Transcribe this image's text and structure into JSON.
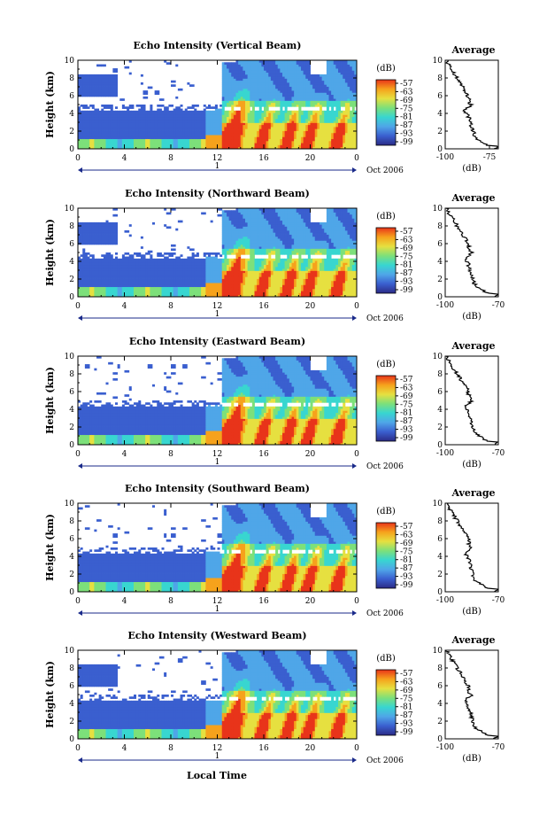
{
  "figure": {
    "xlabel": "Local Time",
    "date_label": "Oct 2006",
    "day_label": "1",
    "colorbar_unit": "(dB)",
    "average_title": "Average",
    "average_xlabel": "(dB)"
  },
  "colors": {
    "colormap": [
      "#2b2b86",
      "#3a5fcf",
      "#4fa6e8",
      "#38d6d0",
      "#7de07a",
      "#e6e040",
      "#f6a21c",
      "#e8341a"
    ],
    "trace": "#000000"
  },
  "chart_data": [
    {
      "type": "heatmap",
      "title": "Echo Intensity (Vertical Beam)",
      "ylabel": "Height (km)",
      "xlim": [
        0,
        24
      ],
      "ylim": [
        0,
        10
      ],
      "x_ticks": [
        "0",
        "4",
        "8",
        "12",
        "16",
        "20",
        "0"
      ],
      "y_ticks": [
        "0",
        "2",
        "4",
        "6",
        "8",
        "10"
      ],
      "colorbar_ticks": [
        "-57",
        "-63",
        "-69",
        "-75",
        "-81",
        "-87",
        "-93",
        "-99"
      ],
      "average": {
        "title": "Average",
        "xlabel": "(dB)",
        "x_ticks": [
          "-100",
          "-75"
        ],
        "xlim": [
          -100,
          -70
        ],
        "y_ticks": [
          "0",
          "2",
          "4",
          "6",
          "8",
          "10"
        ]
      }
    },
    {
      "type": "heatmap",
      "title": "Echo Intensity (Northward Beam)",
      "ylabel": "Height (km)",
      "xlim": [
        0,
        24
      ],
      "ylim": [
        0,
        10
      ],
      "x_ticks": [
        "0",
        "4",
        "8",
        "12",
        "16",
        "20",
        "0"
      ],
      "y_ticks": [
        "0",
        "2",
        "4",
        "6",
        "8",
        "10"
      ],
      "colorbar_ticks": [
        "-57",
        "-63",
        "-69",
        "-75",
        "-81",
        "-87",
        "-93",
        "-99"
      ],
      "average": {
        "title": "Average",
        "xlabel": "(dB)",
        "x_ticks": [
          "-100",
          "-70"
        ],
        "xlim": [
          -100,
          -70
        ],
        "y_ticks": [
          "0",
          "2",
          "4",
          "6",
          "8",
          "10"
        ]
      }
    },
    {
      "type": "heatmap",
      "title": "Echo Intensity (Eastward Beam)",
      "ylabel": "Height (km)",
      "xlim": [
        0,
        24
      ],
      "ylim": [
        0,
        10
      ],
      "x_ticks": [
        "0",
        "4",
        "8",
        "12",
        "16",
        "20",
        "0"
      ],
      "y_ticks": [
        "0",
        "2",
        "4",
        "6",
        "8",
        "10"
      ],
      "colorbar_ticks": [
        "-57",
        "-63",
        "-69",
        "-75",
        "-81",
        "-87",
        "-93",
        "-99"
      ],
      "average": {
        "title": "Average",
        "xlabel": "(dB)",
        "x_ticks": [
          "-100",
          "-70"
        ],
        "xlim": [
          -100,
          -70
        ],
        "y_ticks": [
          "0",
          "2",
          "4",
          "6",
          "8",
          "10"
        ]
      }
    },
    {
      "type": "heatmap",
      "title": "Echo Intensity (Southward Beam)",
      "ylabel": "Height (km)",
      "xlim": [
        0,
        24
      ],
      "ylim": [
        0,
        10
      ],
      "x_ticks": [
        "0",
        "4",
        "8",
        "12",
        "16",
        "20",
        "0"
      ],
      "y_ticks": [
        "0",
        "2",
        "4",
        "6",
        "8",
        "10"
      ],
      "colorbar_ticks": [
        "-57",
        "-63",
        "-69",
        "-75",
        "-81",
        "-87",
        "-93",
        "-99"
      ],
      "average": {
        "title": "Average",
        "xlabel": "(dB)",
        "x_ticks": [
          "-100",
          "-70"
        ],
        "xlim": [
          -100,
          -70
        ],
        "y_ticks": [
          "0",
          "2",
          "4",
          "6",
          "8",
          "10"
        ]
      }
    },
    {
      "type": "heatmap",
      "title": "Echo Intensity (Westward Beam)",
      "ylabel": "Height (km)",
      "xlim": [
        0,
        24
      ],
      "ylim": [
        0,
        10
      ],
      "x_ticks": [
        "0",
        "4",
        "8",
        "12",
        "16",
        "20",
        "0"
      ],
      "y_ticks": [
        "0",
        "2",
        "4",
        "6",
        "8",
        "10"
      ],
      "colorbar_ticks": [
        "-57",
        "-63",
        "-69",
        "-75",
        "-81",
        "-87",
        "-93",
        "-99"
      ],
      "average": {
        "title": "Average",
        "xlabel": "(dB)",
        "x_ticks": [
          "-100",
          "-70"
        ],
        "xlim": [
          -100,
          -70
        ],
        "y_ticks": [
          "0",
          "2",
          "4",
          "6",
          "8",
          "10"
        ]
      }
    }
  ]
}
